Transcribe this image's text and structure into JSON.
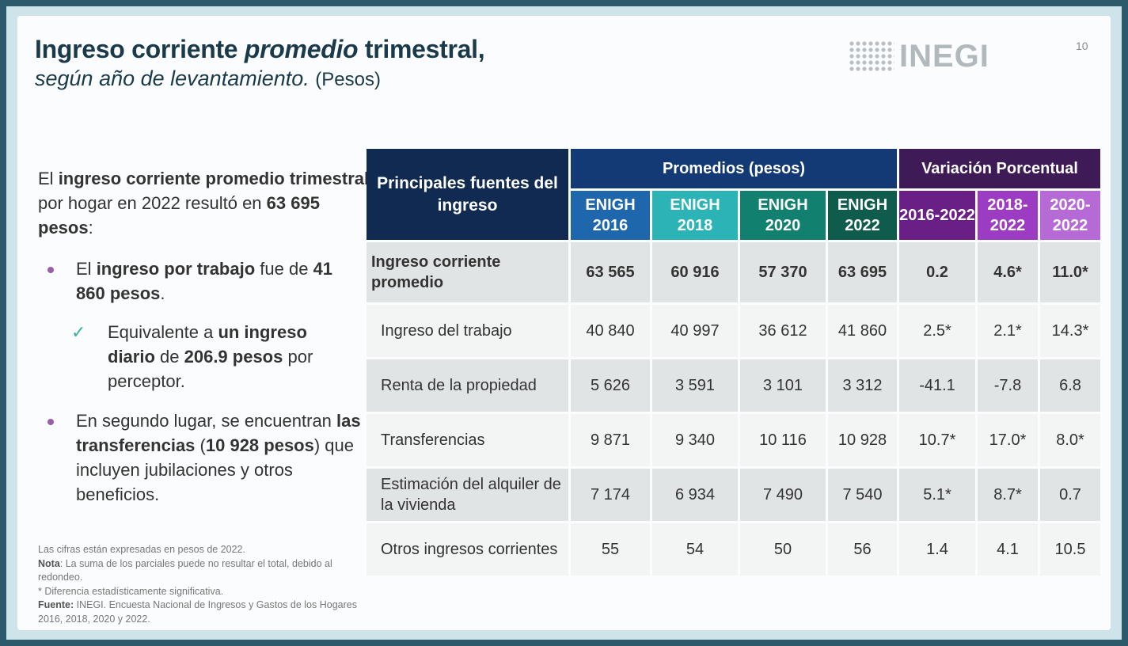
{
  "header": {
    "title_part1": "Ingreso corriente ",
    "title_italic": "promedio",
    "title_part2": " trimestral,",
    "subtitle": "según año de levantamiento.",
    "subtitle_unit": "(Pesos)",
    "logo_text": "INEGI",
    "page_number": "10"
  },
  "left": {
    "lead": {
      "t1": "El ",
      "b1": "ingreso corriente promedio trimestral",
      "t2": " por hogar en 2022 resultó en ",
      "b2": "63 695 pesos",
      "t3": ":"
    },
    "bullet1": {
      "t1": "El ",
      "b1": "ingreso por trabajo",
      "t2": " fue de ",
      "b2": "41 860 pesos",
      "t3": "."
    },
    "check": {
      "t1": "Equivalente a ",
      "b1": "un ingreso diario",
      "t2": " de ",
      "b2": "206.9 pesos",
      "t3": " por perceptor."
    },
    "bullet2": {
      "t1": "En segundo lugar, se encuentran ",
      "b1": "las transferencias",
      "t2": " (",
      "b2": "10 928 pesos",
      "t3": ") que incluyen jubilaciones y otros beneficios."
    }
  },
  "notes": {
    "line1": "Las cifras están expresadas en pesos de 2022.",
    "nota_label": "Nota",
    "nota_text": ": La suma de los parciales puede no resultar el total, debido al redondeo.",
    "asterisk": "* Diferencia estadísticamente significativa.",
    "fuente_label": "Fuente:",
    "fuente_text": " INEGI. Encuesta Nacional de Ingresos y Gastos de los Hogares 2016, 2018, 2020 y 2022."
  },
  "table": {
    "source_header": "Principales fuentes del ingreso",
    "promedios_header": "Promedios (pesos)",
    "variacion_header": "Variación Porcentual",
    "sub_headers": [
      "ENIGH 2016",
      "ENIGH 2018",
      "ENIGH 2020",
      "ENIGH 2022",
      "2016-2022",
      "2018-2022",
      "2020-2022"
    ],
    "sub_colors": [
      "#1f67ad",
      "#2bb3b5",
      "#12806e",
      "#0f5c4c",
      "#6a1f86",
      "#9b3cc2",
      "#b56ad6"
    ],
    "rows": [
      {
        "label": "Ingreso corriente promedio",
        "values": [
          "63 565",
          "60 916",
          "57 370",
          "63 695",
          "0.2",
          "4.6*",
          "11.0*"
        ]
      },
      {
        "label": "Ingreso del trabajo",
        "values": [
          "40 840",
          "40 997",
          "36 612",
          "41 860",
          "2.5*",
          "2.1*",
          "14.3*"
        ]
      },
      {
        "label": "Renta de la propiedad",
        "values": [
          "5 626",
          "3 591",
          "3 101",
          "3 312",
          "-41.1",
          "-7.8",
          "6.8"
        ]
      },
      {
        "label": "Transferencias",
        "values": [
          "9 871",
          "9 340",
          "10 116",
          "10 928",
          "10.7*",
          "17.0*",
          "8.0*"
        ]
      },
      {
        "label": "Estimación del alquiler de la vivienda",
        "values": [
          "7 174",
          "6 934",
          "7 490",
          "7 540",
          "5.1*",
          "8.7*",
          "0.7"
        ]
      },
      {
        "label": "Otros ingresos corrientes",
        "values": [
          "55",
          "54",
          "50",
          "56",
          "1.4",
          "4.1",
          "10.5"
        ]
      }
    ]
  }
}
